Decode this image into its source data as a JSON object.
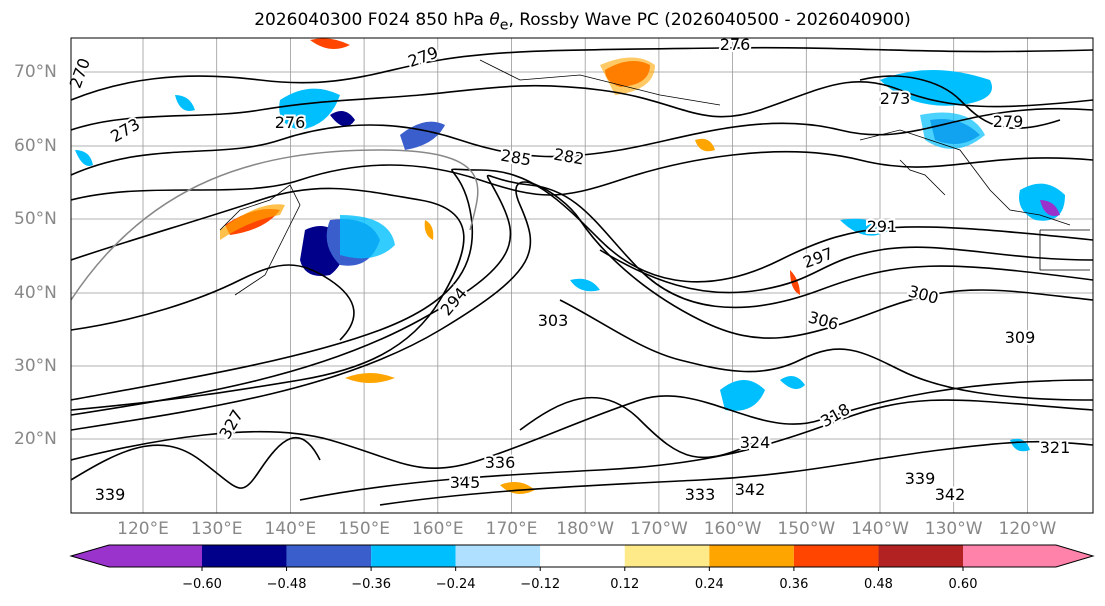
{
  "title": {
    "prefix": "2026040300 F024 850 hPa ",
    "theta": "θ",
    "sub": "e",
    "suffix": ", Rossby Wave PC (2026040500 - 2026040900)"
  },
  "lat_labels": [
    "70°N",
    "60°N",
    "50°N",
    "40°N",
    "30°N",
    "20°N"
  ],
  "lon_labels": [
    "120°E",
    "130°E",
    "140°E",
    "150°E",
    "160°E",
    "170°E",
    "180°W",
    "170°W",
    "160°W",
    "150°W",
    "140°W",
    "130°W",
    "120°W"
  ],
  "colorbar": {
    "colors": [
      "#9933cc",
      "#00008b",
      "#3a5fcd",
      "#00bfff",
      "#b0e0ff",
      "#ffffff",
      "#ffea8a",
      "#ffa500",
      "#ff4500",
      "#b22222",
      "#ff82ab"
    ],
    "ticks": [
      "−0.60",
      "−0.48",
      "−0.36",
      "−0.24",
      "−0.12",
      "0.12",
      "0.24",
      "0.36",
      "0.48",
      "0.60"
    ]
  },
  "contour_labels": [
    "270",
    "273",
    "276",
    "279",
    "276",
    "273",
    "279",
    "282",
    "285",
    "291",
    "294",
    "297",
    "300",
    "303",
    "306",
    "309",
    "318",
    "321",
    "324",
    "327",
    "333",
    "339",
    "342",
    "345",
    "336",
    "342",
    "339"
  ]
}
